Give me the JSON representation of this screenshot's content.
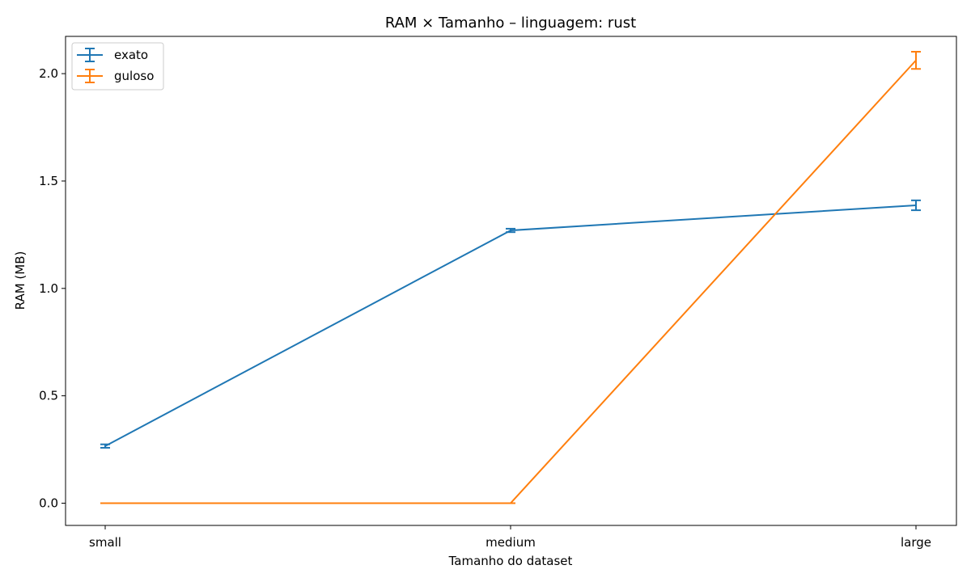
{
  "chart_data": {
    "type": "line",
    "title": "RAM × Tamanho – linguagem: rust",
    "xlabel": "Tamanho do dataset",
    "ylabel": "RAM (MB)",
    "categories": [
      "small",
      "medium",
      "large"
    ],
    "ylim": [
      -0.1035,
      2.1735
    ],
    "yticks": [
      0.0,
      0.5,
      1.0,
      1.5,
      2.0
    ],
    "ytick_labels": [
      "0.0",
      "0.5",
      "1.0",
      "1.5",
      "2.0"
    ],
    "grid": false,
    "legend_position": "top-left",
    "series": [
      {
        "name": "exato",
        "color": "#1f77b4",
        "values": [
          0.266,
          1.27,
          1.387
        ],
        "errors": [
          0.008,
          0.008,
          0.023
        ]
      },
      {
        "name": "guloso",
        "color": "#ff7f0e",
        "values": [
          0.0,
          0.0,
          2.062
        ],
        "errors": [
          0.0,
          0.0,
          0.04
        ]
      }
    ]
  }
}
